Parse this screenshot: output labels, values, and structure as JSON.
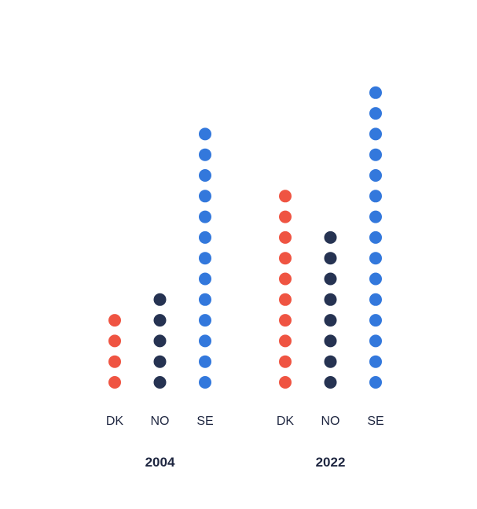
{
  "chart_data": {
    "type": "dot-column",
    "title": "",
    "xlabel": "",
    "ylabel": "",
    "groups": [
      {
        "label": "2004",
        "columns": [
          {
            "category": "DK",
            "value": 4,
            "color": "#ef5442"
          },
          {
            "category": "NO",
            "value": 5,
            "color": "#263352"
          },
          {
            "category": "SE",
            "value": 13,
            "color": "#3378dc"
          }
        ]
      },
      {
        "label": "2022",
        "columns": [
          {
            "category": "DK",
            "value": 10,
            "color": "#ef5442"
          },
          {
            "category": "NO",
            "value": 8,
            "color": "#263352"
          },
          {
            "category": "SE",
            "value": 15,
            "color": "#3378dc"
          }
        ]
      }
    ],
    "grid": false,
    "legend": "none"
  }
}
